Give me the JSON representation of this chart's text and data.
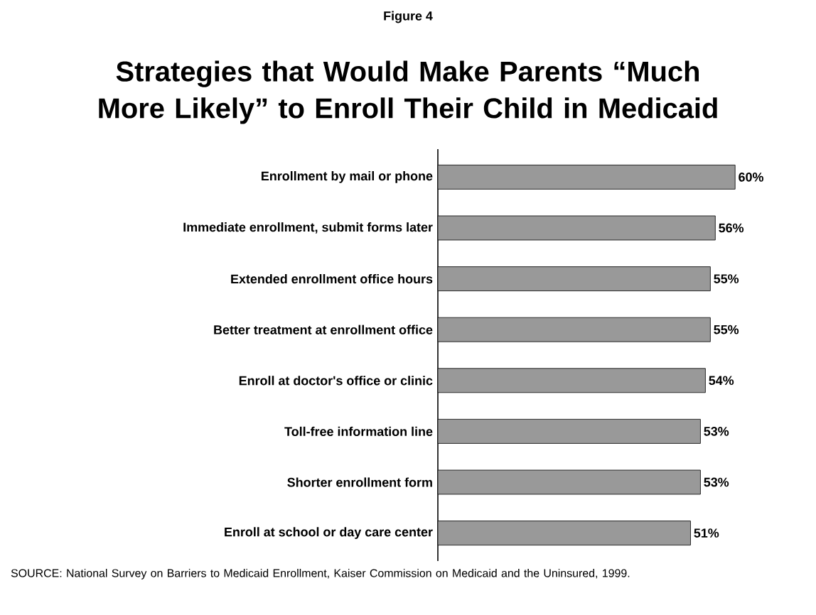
{
  "chart_data": {
    "type": "bar",
    "orientation": "horizontal",
    "subtitle": "Figure 4",
    "title": "Strategies that Would Make Parents “Much More Likely” to Enroll Their Child in Medicaid",
    "categories": [
      "Enrollment by mail or phone",
      "Immediate enrollment, submit forms later",
      "Extended enrollment office hours",
      "Better treatment at enrollment office",
      "Enroll at doctor's office or clinic",
      "Toll-free information line",
      "Shorter enrollment form",
      "Enroll at school or day care center"
    ],
    "values": [
      60,
      56,
      55,
      55,
      54,
      53,
      53,
      51
    ],
    "value_labels": [
      "60%",
      "56%",
      "55%",
      "55%",
      "54%",
      "53%",
      "53%",
      "51%"
    ],
    "color": "#999999",
    "tick_labels": "y",
    "annotations": [
      "SOURCE: National Survey on Barriers to Medicaid Enrollment, Kaiser Commission on Medicaid and the Uninsured, 1999."
    ]
  }
}
